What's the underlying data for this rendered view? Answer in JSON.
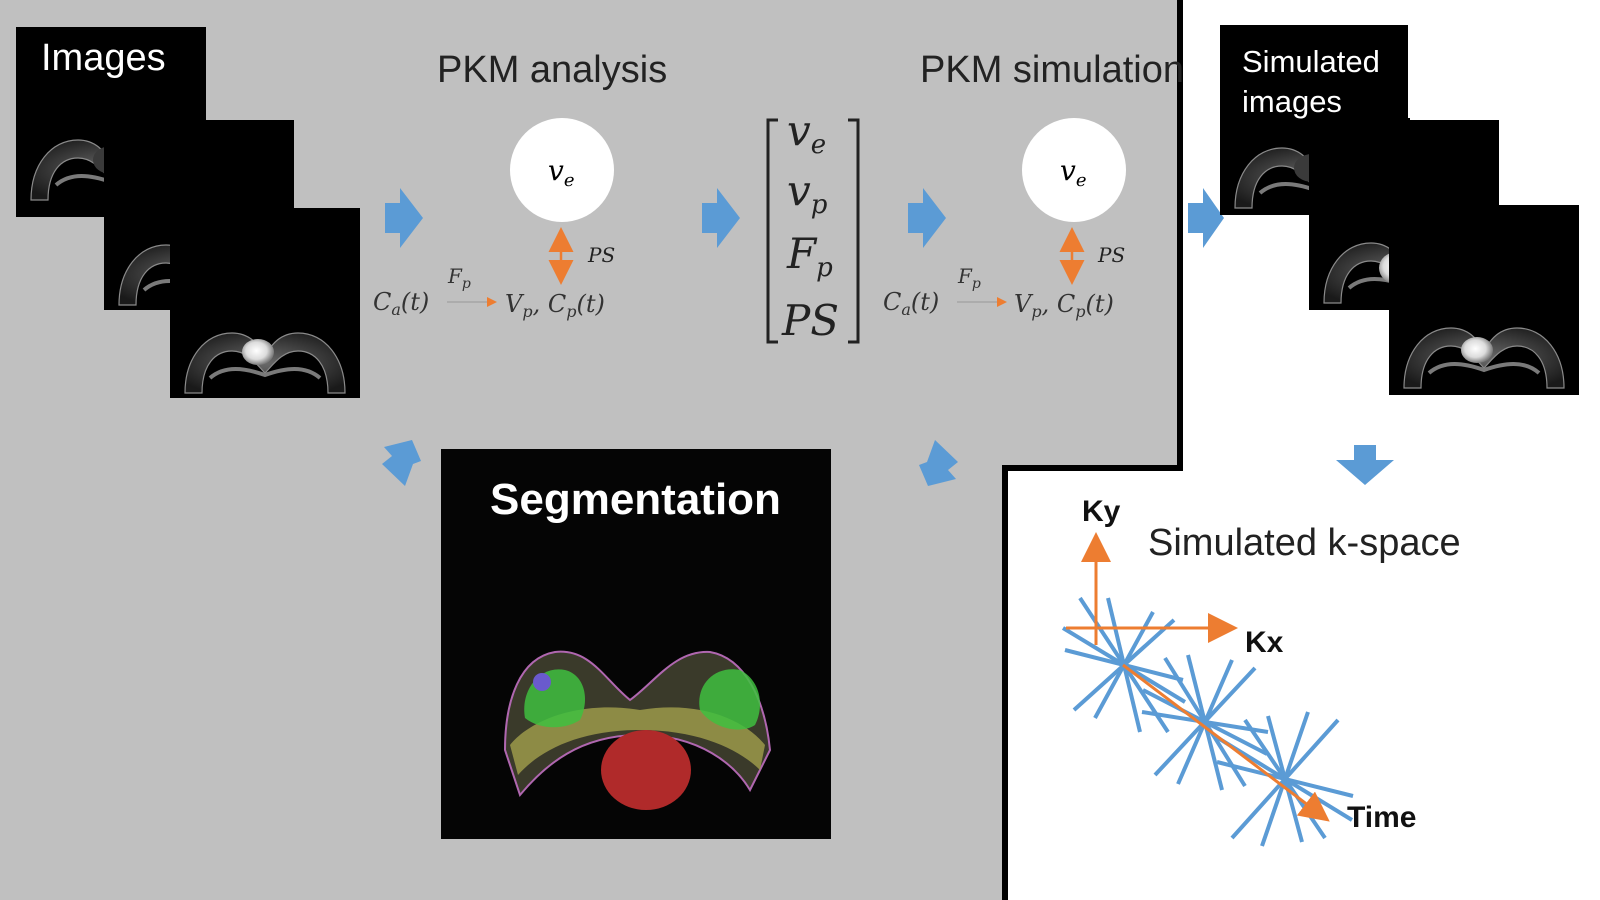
{
  "panels": {
    "images_title": "Images",
    "simulated_images_line1": "Simulated",
    "simulated_images_line2": "images",
    "segmentation_title": "Segmentation"
  },
  "headings": {
    "pkm_analysis": "PKM analysis",
    "pkm_simulation": "PKM simulation",
    "simulated_kspace": "Simulated k-space"
  },
  "model": {
    "circle_label_main": "v",
    "circle_label_sub": "e",
    "ps_label": "PS",
    "ca_main": "C",
    "ca_sub": "a",
    "ca_arg": "(t)",
    "fp_main": "F",
    "fp_sub": "p",
    "vp_main": "V",
    "vp_sub": "p",
    "cp_main": ", C",
    "cp_sub": "p",
    "cp_arg": "(t)"
  },
  "vector": {
    "row1_main": "v",
    "row1_sub": "e",
    "row2_main": "v",
    "row2_sub": "p",
    "row3_main": "F",
    "row3_sub": "p",
    "row4": "PS"
  },
  "kspace": {
    "ky": "Ky",
    "kx": "Kx",
    "time": "Time"
  },
  "colors": {
    "background": "#c0c0c0",
    "arrow_blue": "#5b9bd5",
    "spoke_blue": "#5b9bd5",
    "axis_orange": "#ed7d31",
    "tumor_red": "#c0392b",
    "fibroglandular_green": "#3fbf3f",
    "skin_yellow": "#9c9a4a"
  },
  "icons": [
    "right-arrow-icon",
    "down-arrow-icon",
    "diagonal-arrow-icon",
    "double-headed-arrow-icon"
  ]
}
